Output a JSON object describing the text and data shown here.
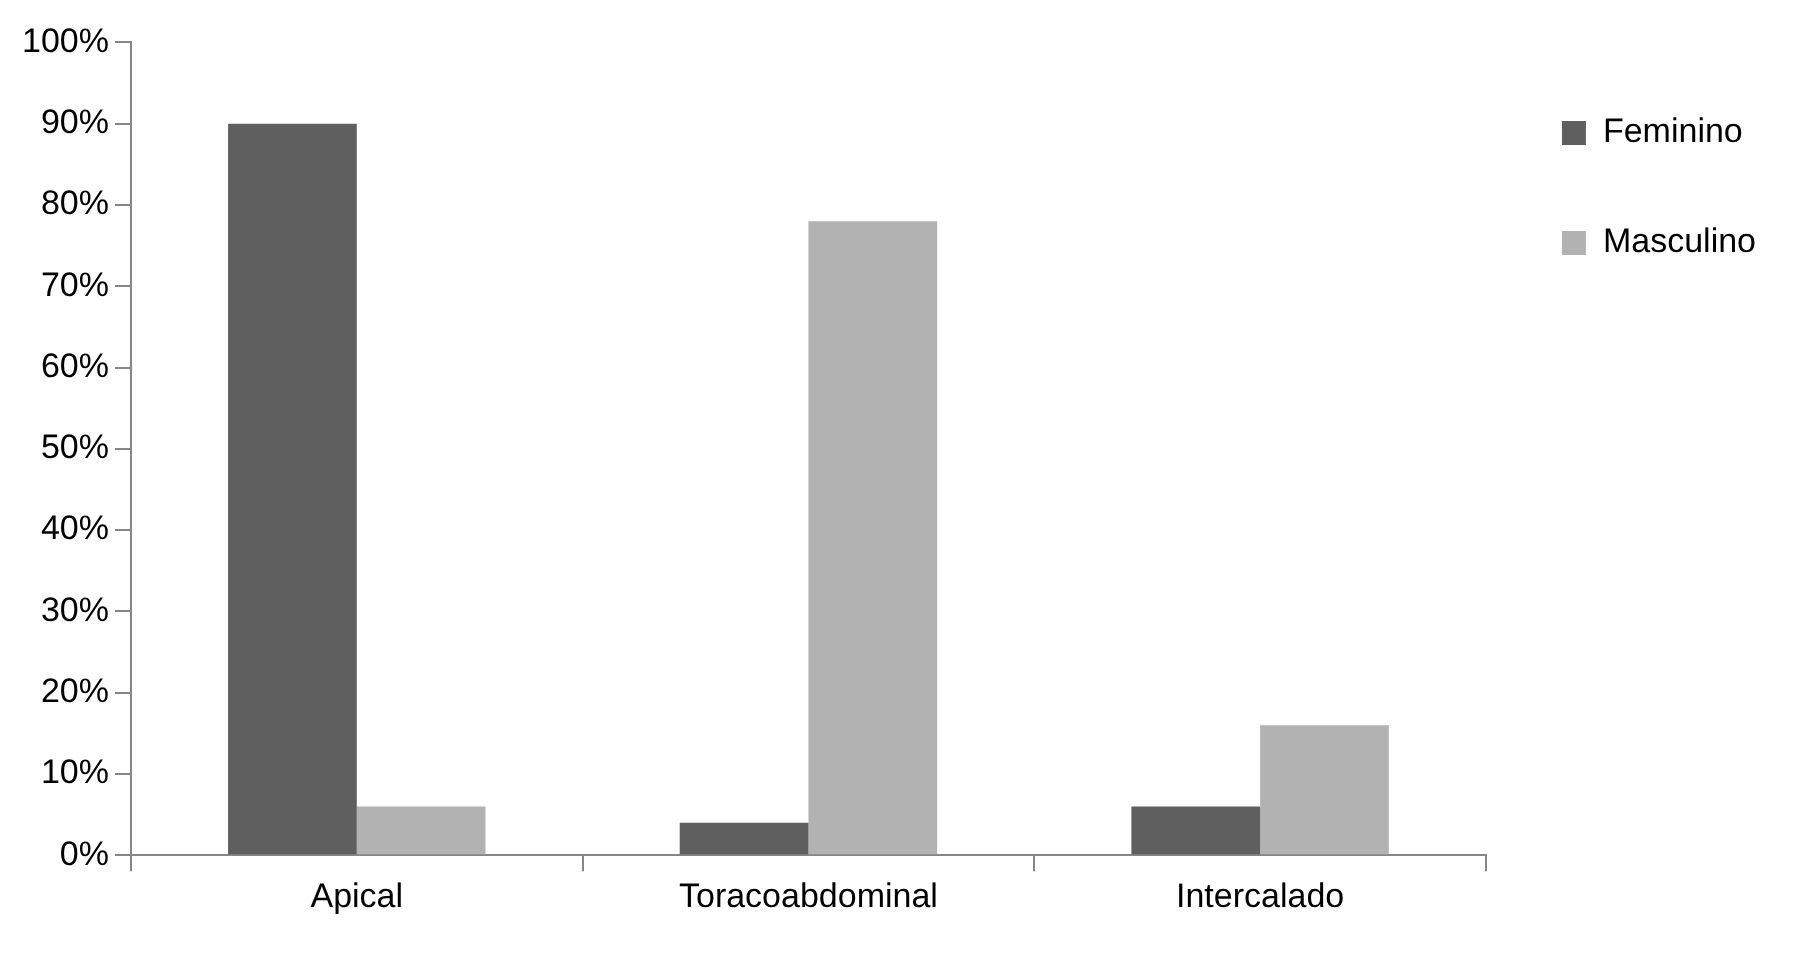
{
  "chart_data": {
    "type": "bar",
    "categories": [
      "Apical",
      "Toracoabdominal",
      "Intercalado"
    ],
    "series": [
      {
        "name": "Feminino",
        "color": "#5f5f5f",
        "values": [
          90,
          4,
          6
        ]
      },
      {
        "name": "Masculino",
        "color": "#b2b2b2",
        "values": [
          6,
          78,
          16
        ]
      }
    ],
    "ylim": [
      0,
      100
    ],
    "yticks": [
      {
        "value": 0,
        "label": "0%"
      },
      {
        "value": 10,
        "label": "10%"
      },
      {
        "value": 20,
        "label": "20%"
      },
      {
        "value": 30,
        "label": "30%"
      },
      {
        "value": 40,
        "label": "40%"
      },
      {
        "value": 50,
        "label": "50%"
      },
      {
        "value": 60,
        "label": "60%"
      },
      {
        "value": 70,
        "label": "70%"
      },
      {
        "value": 80,
        "label": "80%"
      },
      {
        "value": 90,
        "label": "90%"
      },
      {
        "value": 100,
        "label": "100%"
      }
    ],
    "grid": false,
    "legend": "right"
  }
}
